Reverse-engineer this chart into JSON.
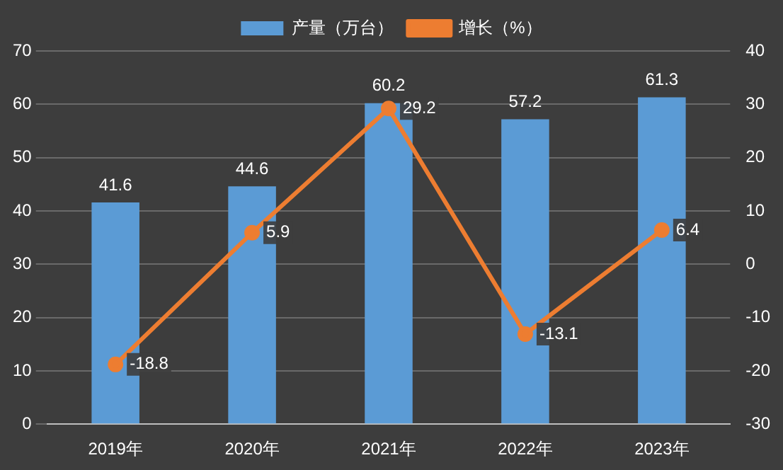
{
  "chart_data": {
    "type": "bar",
    "categories": [
      "2019年",
      "2020年",
      "2021年",
      "2022年",
      "2023年"
    ],
    "series": [
      {
        "name": "产量（万台）",
        "color": "#5b9bd5",
        "values": [
          41.6,
          44.6,
          60.2,
          57.2,
          61.3
        ]
      },
      {
        "name": "增长（%）",
        "type": "line",
        "axis": "y2",
        "color": "#ed7d31",
        "values": [
          -18.8,
          5.9,
          29.2,
          -13.1,
          6.4
        ]
      }
    ],
    "ylim": [
      0,
      70
    ],
    "yticks": [
      0,
      10,
      20,
      30,
      40,
      50,
      60,
      70
    ],
    "y2lim": [
      -30,
      40
    ],
    "y2ticks": [
      -30,
      -20,
      -10,
      0,
      10,
      20,
      30,
      40
    ],
    "grid": "y",
    "legend": "top",
    "marker": "circle",
    "data_labels": true
  }
}
